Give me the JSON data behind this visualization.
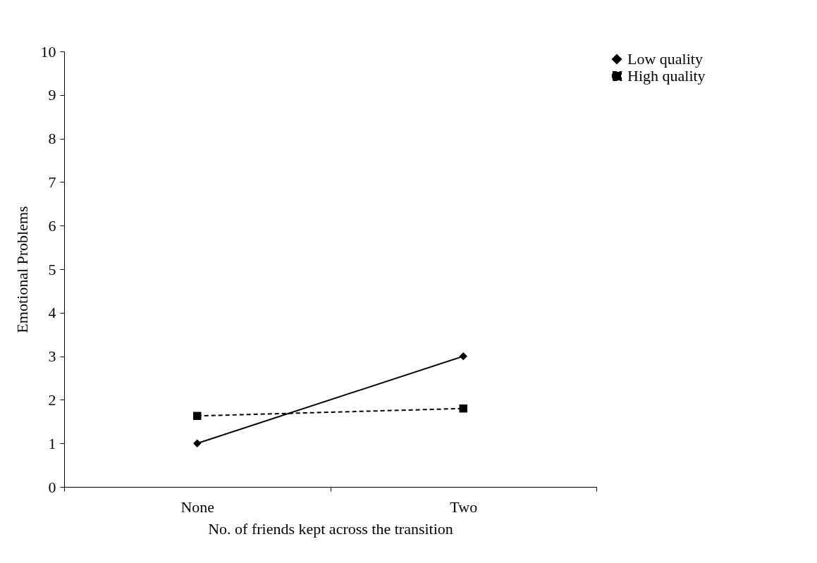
{
  "chart_data": {
    "type": "line",
    "xlabel": "No. of friends kept across the transition",
    "ylabel": "Emotional Problems",
    "categories": [
      "None",
      "Two"
    ],
    "series": [
      {
        "name": "Low quality",
        "color": "#000000",
        "values": [
          1.0,
          3.0
        ],
        "marker": "diamond",
        "line_style": "solid"
      },
      {
        "name": "High quality",
        "color": "#000000",
        "values": [
          1.63,
          1.8
        ],
        "marker": "square",
        "line_style": "dashed"
      }
    ],
    "ylim": [
      0,
      10
    ],
    "yticks": [
      0,
      1,
      2,
      3,
      4,
      5,
      6,
      7,
      8,
      9,
      10
    ],
    "grid": false,
    "legend": "right"
  }
}
